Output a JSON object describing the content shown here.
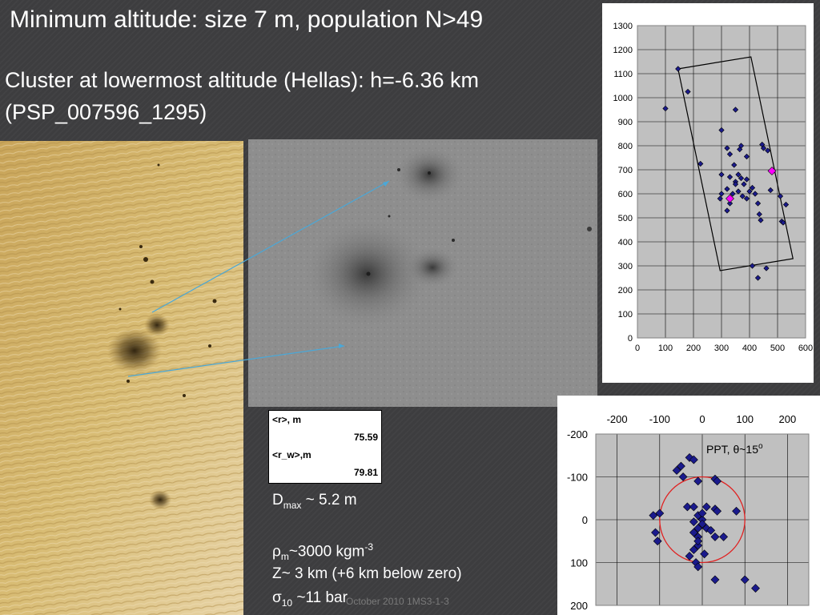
{
  "slide": {
    "title": "Minimum altitude: size 7 m, population N>49",
    "subtitle_line1": "Cluster at lowermost altitude (Hellas): h=-6.36 km",
    "subtitle_line2": "(PSP_007596_1295)",
    "footer": "October 2010 1MS3-1-3"
  },
  "colors": {
    "background": "#3d3d3f",
    "marker": "#1a1a8c",
    "highlight_marker": "#ff00ff",
    "circle": "#e02020",
    "plot_area": "#c0c0c0",
    "arrow": "#4aa8d8"
  },
  "stats_table": {
    "r_label": "<r>, m",
    "r_value": "75.59",
    "rw_label": "<r_w>,m",
    "rw_value": "79.81"
  },
  "info": {
    "dmax_symbol": "D",
    "dmax_sub": "max",
    "dmax_rest": " ~ 5.2 m",
    "rho_symbol": "ρ",
    "rho_sub": "m",
    "rho_rest": "~3000 kgm",
    "rho_sup": "-3",
    "z_line": "Z~ 3 km (+6 km below zero)",
    "sigma_symbol": "σ",
    "sigma_sub": "10",
    "sigma_rest": " ~11 bar"
  },
  "chart_data": [
    {
      "type": "scatter",
      "title": "",
      "xlabel": "",
      "ylabel": "",
      "xlim": [
        0,
        600
      ],
      "ylim": [
        0,
        1300
      ],
      "x_ticks": [
        "0",
        "100",
        "200",
        "300",
        "400",
        "500",
        "600"
      ],
      "y_ticks": [
        "0",
        "100",
        "200",
        "300",
        "400",
        "500",
        "600",
        "700",
        "800",
        "900",
        "1000",
        "1100",
        "1200",
        "1300"
      ],
      "grid": true,
      "series": [
        {
          "points": [
            [
              145,
              1120
            ],
            [
              100,
              955
            ],
            [
              180,
              1025
            ],
            [
              350,
              950
            ],
            [
              225,
              725
            ],
            [
              300,
              865
            ],
            [
              320,
              790
            ],
            [
              330,
              765
            ],
            [
              365,
              785
            ],
            [
              370,
              800
            ],
            [
              390,
              755
            ],
            [
              445,
              805
            ],
            [
              450,
              790
            ],
            [
              465,
              780
            ],
            [
              300,
              680
            ],
            [
              330,
              670
            ],
            [
              345,
              720
            ],
            [
              350,
              650
            ],
            [
              360,
              680
            ],
            [
              370,
              665
            ],
            [
              380,
              640
            ],
            [
              390,
              660
            ],
            [
              400,
              610
            ],
            [
              410,
              625
            ],
            [
              420,
              600
            ],
            [
              320,
              620
            ],
            [
              340,
              600
            ],
            [
              360,
              610
            ],
            [
              375,
              590
            ],
            [
              390,
              580
            ],
            [
              295,
              580
            ],
            [
              300,
              600
            ],
            [
              320,
              530
            ],
            [
              330,
              560
            ],
            [
              350,
              640
            ],
            [
              430,
              560
            ],
            [
              435,
              515
            ],
            [
              440,
              490
            ],
            [
              475,
              615
            ],
            [
              510,
              590
            ],
            [
              515,
              485
            ],
            [
              520,
              480
            ],
            [
              530,
              555
            ],
            [
              410,
              300
            ],
            [
              430,
              250
            ],
            [
              460,
              290
            ]
          ]
        },
        {
          "points": [
            [
              480,
              695
            ],
            [
              330,
              580
            ]
          ]
        }
      ],
      "annotations": {
        "polygon": [
          [
            145,
            1120
          ],
          [
            405,
            1170
          ],
          [
            555,
            330
          ],
          [
            295,
            280
          ]
        ]
      }
    },
    {
      "type": "scatter",
      "title": "",
      "xlabel": "",
      "ylabel": "",
      "xlim": [
        -250,
        250
      ],
      "ylim": [
        -200,
        200
      ],
      "y_axis_reversed": true,
      "x_ticks": [
        "-200",
        "-100",
        "0",
        "100",
        "200"
      ],
      "y_ticks": [
        "-200",
        "-100",
        "0",
        "100",
        "200"
      ],
      "grid": true,
      "series": [
        {
          "points": [
            [
              -30,
              -145
            ],
            [
              -20,
              -140
            ],
            [
              -50,
              -125
            ],
            [
              -60,
              -115
            ],
            [
              -45,
              -100
            ],
            [
              -10,
              -90
            ],
            [
              30,
              -95
            ],
            [
              35,
              -90
            ],
            [
              -35,
              -30
            ],
            [
              -20,
              -30
            ],
            [
              10,
              -30
            ],
            [
              30,
              -25
            ],
            [
              35,
              -20
            ],
            [
              80,
              -20
            ],
            [
              -100,
              -15
            ],
            [
              -10,
              -10
            ],
            [
              0,
              0
            ],
            [
              -20,
              5
            ],
            [
              0,
              10
            ],
            [
              10,
              20
            ],
            [
              -10,
              20
            ],
            [
              20,
              25
            ],
            [
              -20,
              30
            ],
            [
              -10,
              40
            ],
            [
              30,
              40
            ],
            [
              50,
              40
            ],
            [
              -110,
              30
            ],
            [
              -105,
              50
            ],
            [
              -10,
              60
            ],
            [
              -20,
              70
            ],
            [
              5,
              80
            ],
            [
              -30,
              85
            ],
            [
              -15,
              100
            ],
            [
              -10,
              110
            ],
            [
              30,
              140
            ],
            [
              100,
              140
            ],
            [
              125,
              160
            ],
            [
              -115,
              -10
            ],
            [
              0,
              -15
            ],
            [
              -10,
              50
            ]
          ]
        }
      ],
      "annotations": {
        "legend_text": "PPT, θ~15",
        "legend_sup": "o",
        "circle_center": [
          0,
          0
        ],
        "circle_radius": 100
      }
    }
  ]
}
